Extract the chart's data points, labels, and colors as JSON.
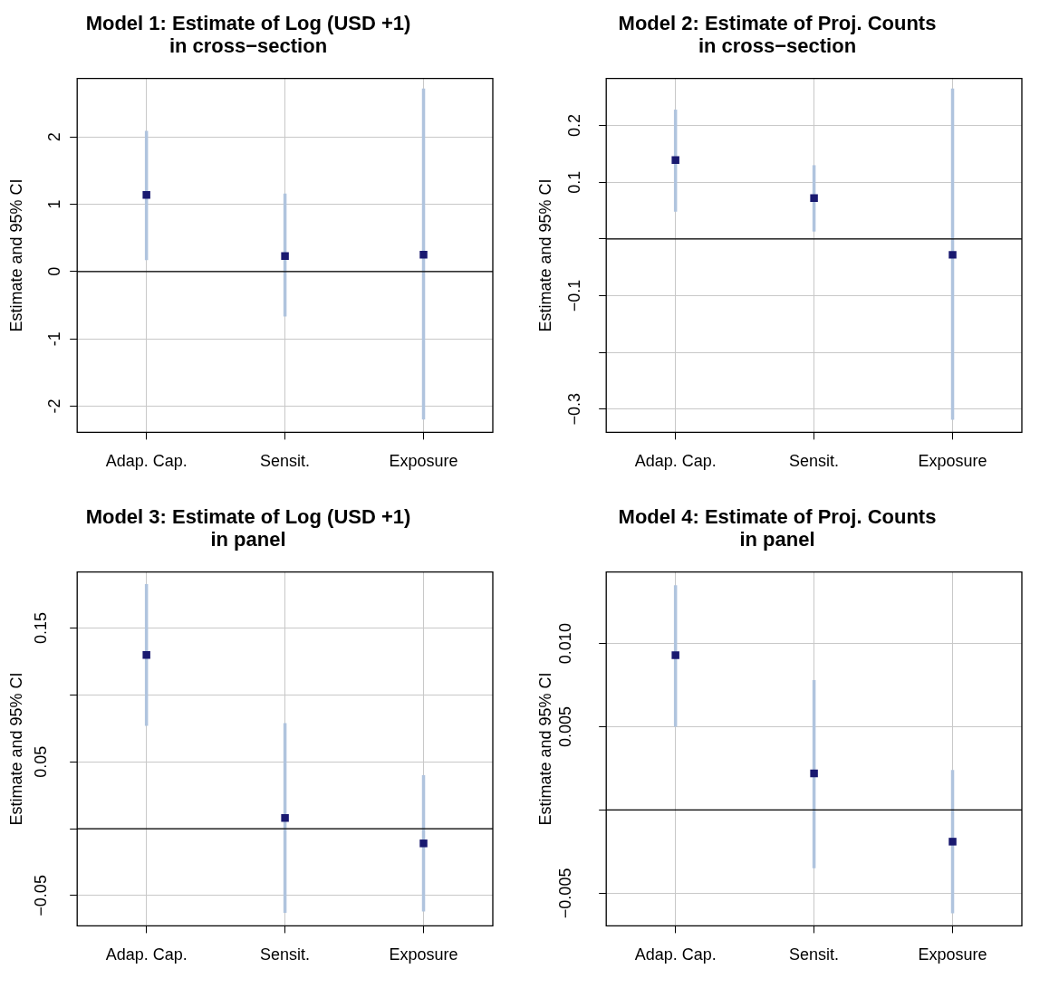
{
  "chart_data": [
    {
      "type": "scatter",
      "title": "Model 1: Estimate of Log (USD +1)\nin cross−section",
      "ylabel": "Estimate and 95% CI",
      "categories": [
        "Adap. Cap.",
        "Sensit.",
        "Exposure"
      ],
      "values": [
        1.14,
        0.23,
        0.25
      ],
      "errors": [
        [
          0.17,
          2.09
        ],
        [
          -0.67,
          1.16
        ],
        [
          -2.2,
          2.72
        ]
      ],
      "color": "#191970",
      "marker": "square",
      "ylim": [
        -2.39,
        2.87
      ],
      "yticks": [
        -2,
        -1,
        0,
        1,
        2
      ],
      "grid": true,
      "ref_lines": [
        {
          "axis": "y",
          "value": 0,
          "color": "#000000"
        }
      ]
    },
    {
      "type": "scatter",
      "title": "Model 2: Estimate of Proj. Counts\nin cross−section",
      "ylabel": "Estimate and 95% CI",
      "categories": [
        "Adap. Cap.",
        "Sensit.",
        "Exposure"
      ],
      "values": [
        0.139,
        0.072,
        -0.028
      ],
      "errors": [
        [
          0.048,
          0.228
        ],
        [
          0.013,
          0.13
        ],
        [
          -0.319,
          0.265
        ]
      ],
      "color": "#191970",
      "marker": "square",
      "ylim": [
        -0.341,
        0.283
      ],
      "yticks": [
        {
          "value": -0.3,
          "label": "−0.3"
        },
        {
          "value": -0.2,
          "label": null
        },
        {
          "value": -0.1,
          "label": "−0.1"
        },
        {
          "value": 0,
          "label": null
        },
        0.1,
        0.2
      ],
      "grid": true,
      "ref_lines": [
        {
          "axis": "y",
          "value": 0,
          "color": "#000000"
        }
      ]
    },
    {
      "type": "scatter",
      "title": "Model 3: Estimate of Log (USD +1)\nin panel",
      "ylabel": "Estimate and 95% CI",
      "categories": [
        "Adap. Cap.",
        "Sensit.",
        "Exposure"
      ],
      "values": [
        0.13,
        0.008,
        -0.011
      ],
      "errors": [
        [
          0.077,
          0.183
        ],
        [
          -0.063,
          0.079
        ],
        [
          -0.062,
          0.04
        ]
      ],
      "color": "#191970",
      "marker": "square",
      "ylim": [
        -0.0727,
        0.192
      ],
      "yticks": [
        {
          "value": -0.05,
          "label": "−0.05"
        },
        {
          "value": 0,
          "label": null
        },
        0.05,
        {
          "value": 0.1,
          "label": null
        },
        0.15
      ],
      "grid": true,
      "ref_lines": [
        {
          "axis": "y",
          "value": 0,
          "color": "#000000"
        }
      ]
    },
    {
      "type": "scatter",
      "title": "Model 4: Estimate of Proj. Counts\nin panel",
      "ylabel": "Estimate and 95% CI",
      "categories": [
        "Adap. Cap.",
        "Sensit.",
        "Exposure"
      ],
      "values": [
        0.0093,
        0.0022,
        -0.0019
      ],
      "errors": [
        [
          0.005,
          0.0135
        ],
        [
          -0.0035,
          0.0078
        ],
        [
          -0.0062,
          0.0024
        ]
      ],
      "color": "#191970",
      "marker": "square",
      "ylim": [
        -0.00696,
        0.0143
      ],
      "yticks": [
        {
          "value": -0.005,
          "label": "−0.005"
        },
        {
          "value": 0,
          "label": null
        },
        {
          "value": 0.005,
          "label": "0.005"
        },
        {
          "value": 0.01,
          "label": "0.010"
        }
      ],
      "grid": true,
      "ref_lines": [
        {
          "axis": "y",
          "value": 0,
          "color": "#000000"
        }
      ]
    }
  ]
}
